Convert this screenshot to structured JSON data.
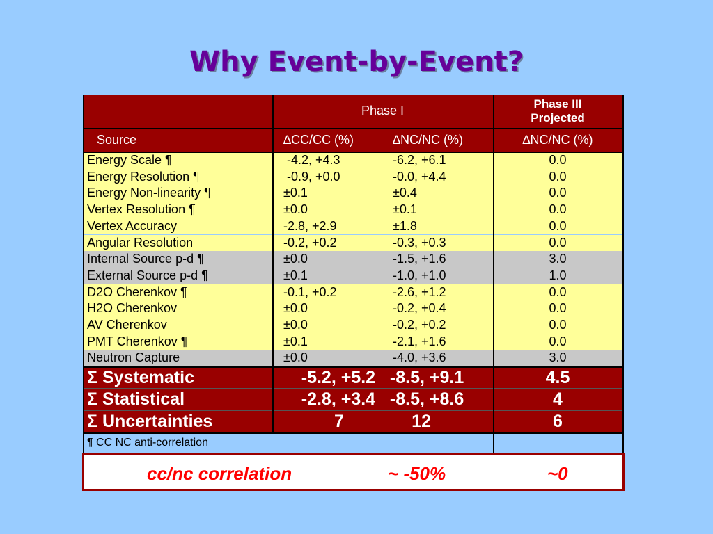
{
  "title": "Why Event-by-Event?",
  "table": {
    "header": {
      "phase1": "Phase I",
      "phase3_line1": "Phase III",
      "phase3_line2": "Projected",
      "source": "Source",
      "col_cc": "∆CC/CC (%)",
      "col_nc": "∆NC/NC (%)",
      "col_nc3": "∆NC/NC (%)"
    },
    "rows": [
      {
        "source": "Energy Scale ¶",
        "cc": " -4.2, +4.3",
        "nc": "-6.2, +6.1",
        "p3": "0.0",
        "group": "yellow"
      },
      {
        "source": "Energy Resolution ¶",
        "cc": " -0.9, +0.0",
        "nc": "-0.0, +4.4",
        "p3": "0.0",
        "group": "yellow"
      },
      {
        "source": "Energy Non-linearity ¶",
        "cc": "±0.1",
        "nc": "±0.4",
        "p3": "0.0",
        "group": "yellow"
      },
      {
        "source": "Vertex Resolution ¶",
        "cc": "±0.0",
        "nc": "±0.1",
        "p3": "0.0",
        "group": "yellow"
      },
      {
        "source": "Vertex Accuracy",
        "cc": "-2.8, +2.9",
        "nc": "±1.8",
        "p3": "0.0",
        "group": "yellow"
      },
      {
        "source": "Angular Resolution",
        "cc": "-0.2, +0.2",
        "nc": "-0.3, +0.3",
        "p3": "0.0",
        "group": "yellow"
      },
      {
        "source": "Internal Source p-d ¶",
        "cc": "±0.0",
        "nc": "-1.5, +1.6",
        "p3": "3.0",
        "group": "gray"
      },
      {
        "source": "External Source p-d ¶",
        "cc": "±0.1",
        "nc": "-1.0, +1.0",
        "p3": "1.0",
        "group": "gray"
      },
      {
        "source": "D2O Cherenkov ¶",
        "cc": "-0.1, +0.2",
        "nc": "-2.6, +1.2",
        "p3": "0.0",
        "group": "yellow"
      },
      {
        "source": "H2O Cherenkov",
        "cc": "±0.0",
        "nc": "-0.2, +0.4",
        "p3": "0.0",
        "group": "yellow"
      },
      {
        "source": "AV Cherenkov",
        "cc": "±0.0",
        "nc": "-0.2, +0.2",
        "p3": "0.0",
        "group": "yellow"
      },
      {
        "source": "PMT Cherenkov ¶",
        "cc": "±0.1",
        "nc": "-2.1, +1.6",
        "p3": "0.0",
        "group": "yellow"
      },
      {
        "source": "Neutron Capture",
        "cc": "±0.0",
        "nc": "-4.0, +3.6",
        "p3": "3.0",
        "group": "gray"
      }
    ],
    "summary": [
      {
        "label": "Σ Systematic",
        "phase1": "-5.2, +5.2   -8.5, +9.1",
        "p3": "4.5"
      },
      {
        "label": "Σ Statistical",
        "phase1": "-2.8, +3.4   -8.5, +8.6",
        "p3": "4"
      },
      {
        "label": "Σ Uncertainties",
        "phase1": "7              12",
        "p3": "6"
      }
    ],
    "footnote": "¶ CC NC anti-correlation"
  },
  "correlation": {
    "label": "cc/nc correlation",
    "phase1": "~ -50%",
    "phase3": "~0"
  },
  "colors": {
    "background": "#99ccff",
    "title": "#660099",
    "header_red": "#990000",
    "yellow": "#ffff99",
    "gray": "#c8c8c8",
    "correlation_text": "#ff0000"
  }
}
